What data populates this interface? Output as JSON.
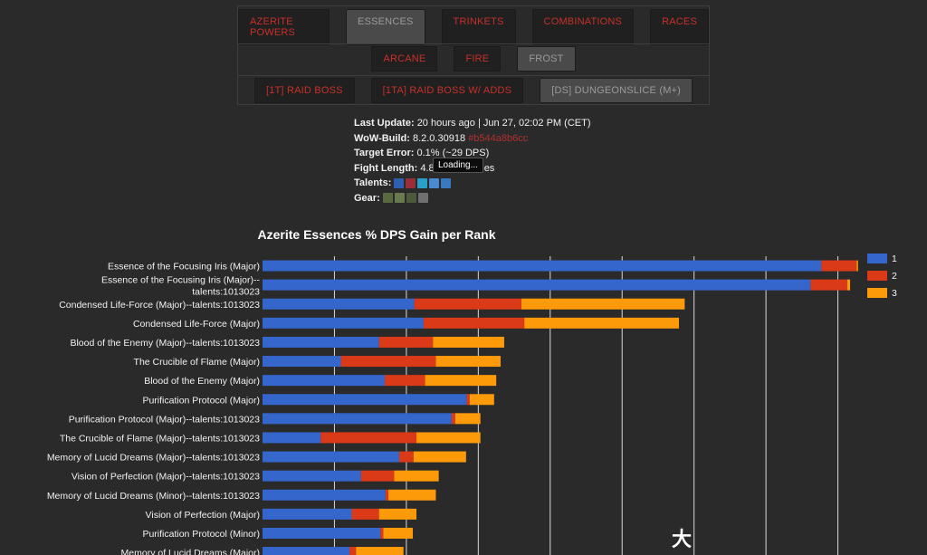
{
  "nav": {
    "row1": [
      "AZERITE POWERS",
      "ESSENCES",
      "TRINKETS",
      "COMBINATIONS",
      "RACES"
    ],
    "row2": [
      "ARCANE",
      "FIRE",
      "FROST"
    ],
    "row3": [
      "[1T] RAID BOSS",
      "[1TA] RAID BOSS W/ ADDS",
      "[DS] DUNGEONSLICE (M+)"
    ],
    "active": [
      "ESSENCES",
      "FROST",
      "[DS] DUNGEONSLICE (M+)"
    ]
  },
  "info": {
    "last_update_label": "Last Update:",
    "last_update_value": "20 hours ago | Jun 27, 02:02 PM (CET)",
    "wow_build_label": "WoW-Build:",
    "wow_build_value": "8.2.0.30918",
    "wow_build_hash": "#b544a8b6cc",
    "target_error_label": "Target Error:",
    "target_error_value": "0.1% (~29 DPS)",
    "fight_length_label": "Fight Length:",
    "fight_length_value": "4.8",
    "fight_length_suffix": "es",
    "talents_label": "Talents:",
    "gear_label": "Gear:",
    "talent_icons": [
      "#2f5fb0",
      "#9a2f3a",
      "#2aa0c8",
      "#4a8ad0",
      "#3a78c0"
    ],
    "gear_icons": [
      "#5a6a40",
      "#6a7a50",
      "#4a5a3a",
      "#707070"
    ],
    "tooltip": "Loading..."
  },
  "colors": {
    "rank1": "#3566cc",
    "rank2": "#db3a18",
    "rank3": "#fd9a0a",
    "gridline": "#d9d9d9",
    "label": "#f2f2f2"
  },
  "watermark": "大",
  "chart_data": {
    "type": "bar",
    "orientation": "horizontal",
    "stacked": true,
    "title": "Azerite Essences % DPS Gain per Rank",
    "categories": [
      "Essence of the Focusing Iris (Major)",
      "Essence of the Focusing Iris (Major)--talents:1013023",
      "Condensed Life-Force (Major)--talents:1013023",
      "Condensed Life-Force (Major)",
      "Blood of the Enemy (Major)--talents:1013023",
      "The Crucible of Flame (Major)",
      "Blood of the Enemy (Major)",
      "Purification Protocol (Major)",
      "Purification Protocol (Major)--talents:1013023",
      "The Crucible of Flame (Major)--talents:1013023",
      "Memory of Lucid Dreams (Major)--talents:1013023",
      "Vision of Perfection (Major)--talents:1013023",
      "Memory of Lucid Dreams (Minor)--talents:1013023",
      "Vision of Perfection (Major)",
      "Purification Protocol (Minor)",
      "Memory of Lucid Dreams (Major)"
    ],
    "series": [
      {
        "name": "1",
        "values": [
          7.77,
          7.62,
          2.11,
          2.24,
          1.62,
          1.09,
          1.7,
          2.84,
          2.63,
          0.81,
          1.9,
          1.37,
          1.71,
          1.24,
          1.64,
          1.21
        ]
      },
      {
        "name": "2",
        "values": [
          0.49,
          0.51,
          1.49,
          1.4,
          0.75,
          1.32,
          0.56,
          0.04,
          0.05,
          1.33,
          0.2,
          0.46,
          0.04,
          0.38,
          0.04,
          0.09
        ]
      },
      {
        "name": "3",
        "values": [
          0.02,
          0.04,
          2.27,
          2.15,
          0.99,
          0.9,
          0.99,
          0.34,
          0.35,
          0.89,
          0.73,
          0.62,
          0.66,
          0.52,
          0.41,
          0.66
        ]
      }
    ],
    "xlim": [
      0,
      9
    ],
    "grid": true,
    "legend": "right"
  }
}
